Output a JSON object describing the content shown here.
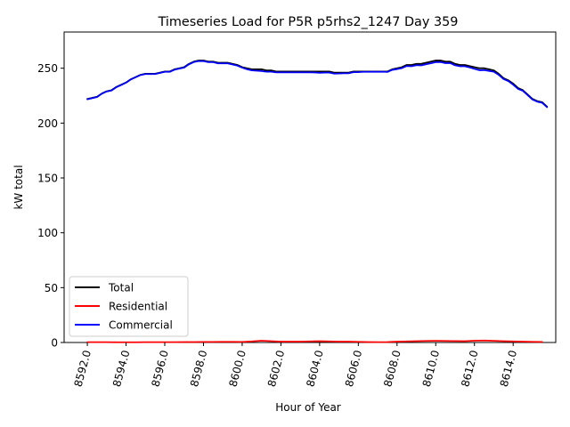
{
  "chart_data": {
    "type": "line",
    "title": "Timeseries Load for P5R p5rhs2_1247  Day 359",
    "xlabel": "Hour of Year",
    "ylabel": "kW total",
    "xlim": [
      8590.8,
      8616.2
    ],
    "ylim": [
      0,
      283
    ],
    "xticks": [
      "8592.0",
      "8594.0",
      "8596.0",
      "8598.0",
      "8600.0",
      "8602.0",
      "8604.0",
      "8606.0",
      "8608.0",
      "8610.0",
      "8612.0",
      "8614.0"
    ],
    "xtick_values": [
      8592,
      8594,
      8596,
      8598,
      8600,
      8602,
      8604,
      8606,
      8608,
      8610,
      8612,
      8614
    ],
    "yticks": [
      "0",
      "50",
      "100",
      "150",
      "200",
      "250"
    ],
    "ytick_values": [
      0,
      50,
      100,
      150,
      200,
      250
    ],
    "legend_position": "lower-left",
    "series": [
      {
        "name": "Total",
        "color": "#000000",
        "x": [
          8592.0,
          8592.25,
          8592.5,
          8592.75,
          8593.0,
          8593.25,
          8593.5,
          8593.75,
          8594.0,
          8594.25,
          8594.5,
          8594.75,
          8595.0,
          8595.25,
          8595.5,
          8595.75,
          8596.0,
          8596.25,
          8596.5,
          8596.75,
          8597.0,
          8597.25,
          8597.5,
          8597.75,
          8598.0,
          8598.25,
          8598.5,
          8598.75,
          8599.0,
          8599.25,
          8599.5,
          8599.75,
          8600.0,
          8600.25,
          8600.5,
          8600.75,
          8601.0,
          8601.25,
          8601.5,
          8601.75,
          8602.0,
          8602.25,
          8602.5,
          8602.75,
          8603.0,
          8603.25,
          8603.5,
          8603.75,
          8604.0,
          8604.25,
          8604.5,
          8604.75,
          8605.0,
          8605.25,
          8605.5,
          8605.75,
          8606.0,
          8606.25,
          8606.5,
          8606.75,
          8607.0,
          8607.25,
          8607.5,
          8607.75,
          8608.0,
          8608.25,
          8608.5,
          8608.75,
          8609.0,
          8609.25,
          8609.5,
          8609.75,
          8610.0,
          8610.25,
          8610.5,
          8610.75,
          8611.0,
          8611.25,
          8611.5,
          8611.75,
          8612.0,
          8612.25,
          8612.5,
          8612.75,
          8613.0,
          8613.25,
          8613.5,
          8613.75,
          8614.0,
          8614.25,
          8614.5,
          8614.75,
          8615.0,
          8615.25,
          8615.5,
          8615.75
        ],
        "y": [
          222,
          223,
          224,
          227,
          229,
          230,
          233,
          235,
          237,
          240,
          242,
          244,
          245,
          245,
          245,
          246,
          247,
          247,
          249,
          250,
          251,
          254,
          256,
          257,
          257,
          256,
          256,
          255,
          255,
          255,
          254,
          253,
          251,
          250,
          249,
          249,
          249,
          248,
          248,
          247,
          247,
          247,
          247,
          247,
          247,
          247,
          247,
          247,
          247,
          247,
          247,
          246,
          246,
          246,
          246,
          247,
          247,
          247,
          247,
          247,
          247,
          247,
          247,
          249,
          250,
          251,
          253,
          253,
          254,
          254,
          255,
          256,
          257,
          257,
          256,
          256,
          254,
          253,
          253,
          252,
          251,
          250,
          250,
          249,
          248,
          245,
          241,
          239,
          236,
          232,
          230,
          226,
          222,
          220,
          219,
          215
        ]
      },
      {
        "name": "Residential",
        "color": "#ff0000",
        "x": [
          8592.0,
          8592.5,
          8593.0,
          8593.5,
          8594.0,
          8594.5,
          8595.0,
          8595.5,
          8596.0,
          8596.5,
          8597.0,
          8597.5,
          8598.0,
          8598.5,
          8599.0,
          8599.5,
          8600.0,
          8600.5,
          8601.0,
          8601.5,
          8602.0,
          8602.5,
          8603.0,
          8603.5,
          8604.0,
          8604.5,
          8605.0,
          8605.5,
          8606.0,
          8606.5,
          8607.0,
          8607.5,
          8608.0,
          8608.5,
          8609.0,
          8609.5,
          8610.0,
          8610.5,
          8611.0,
          8611.5,
          8612.0,
          8612.5,
          8613.0,
          8613.5,
          8614.0,
          8614.5,
          8615.0,
          8615.5
        ],
        "y": [
          0.3,
          0.3,
          0.3,
          0.2,
          0.2,
          0.2,
          0.3,
          0.3,
          0.3,
          0.3,
          0.4,
          0.4,
          0.5,
          0.5,
          0.6,
          0.6,
          0.5,
          1.0,
          1.6,
          1.2,
          0.8,
          0.8,
          0.8,
          1.0,
          1.2,
          1.0,
          0.8,
          0.8,
          0.6,
          0.4,
          0.3,
          0.4,
          0.8,
          1.0,
          1.2,
          1.4,
          1.5,
          1.4,
          1.3,
          1.2,
          1.6,
          1.8,
          1.5,
          1.2,
          1.0,
          0.8,
          0.6,
          0.5
        ]
      },
      {
        "name": "Commercial",
        "color": "#0000ff",
        "x": [
          8592.0,
          8592.25,
          8592.5,
          8592.75,
          8593.0,
          8593.25,
          8593.5,
          8593.75,
          8594.0,
          8594.25,
          8594.5,
          8594.75,
          8595.0,
          8595.25,
          8595.5,
          8595.75,
          8596.0,
          8596.25,
          8596.5,
          8596.75,
          8597.0,
          8597.25,
          8597.5,
          8597.75,
          8598.0,
          8598.25,
          8598.5,
          8598.75,
          8599.0,
          8599.25,
          8599.5,
          8599.75,
          8600.0,
          8600.25,
          8600.5,
          8600.75,
          8601.0,
          8601.25,
          8601.5,
          8601.75,
          8602.0,
          8602.25,
          8602.5,
          8602.75,
          8603.0,
          8603.25,
          8603.5,
          8603.75,
          8604.0,
          8604.25,
          8604.5,
          8604.75,
          8605.0,
          8605.25,
          8605.5,
          8605.75,
          8606.0,
          8606.25,
          8606.5,
          8606.75,
          8607.0,
          8607.25,
          8607.5,
          8607.75,
          8608.0,
          8608.25,
          8608.5,
          8608.75,
          8609.0,
          8609.25,
          8609.5,
          8609.75,
          8610.0,
          8610.25,
          8610.5,
          8610.75,
          8611.0,
          8611.25,
          8611.5,
          8611.75,
          8612.0,
          8612.25,
          8612.5,
          8612.75,
          8613.0,
          8613.25,
          8613.5,
          8613.75,
          8614.0,
          8614.25,
          8614.5,
          8614.75,
          8615.0,
          8615.25,
          8615.5,
          8615.75
        ],
        "y": [
          221.7,
          222.7,
          223.7,
          226.8,
          228.8,
          229.7,
          232.7,
          234.7,
          236.8,
          239.8,
          241.8,
          243.8,
          244.7,
          244.7,
          244.7,
          245.7,
          246.7,
          246.7,
          248.6,
          249.7,
          250.6,
          253.6,
          255.6,
          256.5,
          256.5,
          255.5,
          255.5,
          254.4,
          254.4,
          254.4,
          253.4,
          252.4,
          250.5,
          249.0,
          248.0,
          247.7,
          247.4,
          246.8,
          246.8,
          246.2,
          246.2,
          246.2,
          246.2,
          246.2,
          246.2,
          246.2,
          246.2,
          246.1,
          245.8,
          246.0,
          246.0,
          245.1,
          245.2,
          245.4,
          245.4,
          246.4,
          246.4,
          246.7,
          246.7,
          246.8,
          246.7,
          246.8,
          246.6,
          248.5,
          249.2,
          250.1,
          252.0,
          251.8,
          252.8,
          252.6,
          253.6,
          254.5,
          255.5,
          255.6,
          254.6,
          254.7,
          252.7,
          251.8,
          251.8,
          250.8,
          249.4,
          248.2,
          248.3,
          247.5,
          246.8,
          244.0,
          240.2,
          238.3,
          235.0,
          231.2,
          229.4,
          225.5,
          221.4,
          219.5,
          218.5,
          214.5
        ]
      }
    ]
  }
}
